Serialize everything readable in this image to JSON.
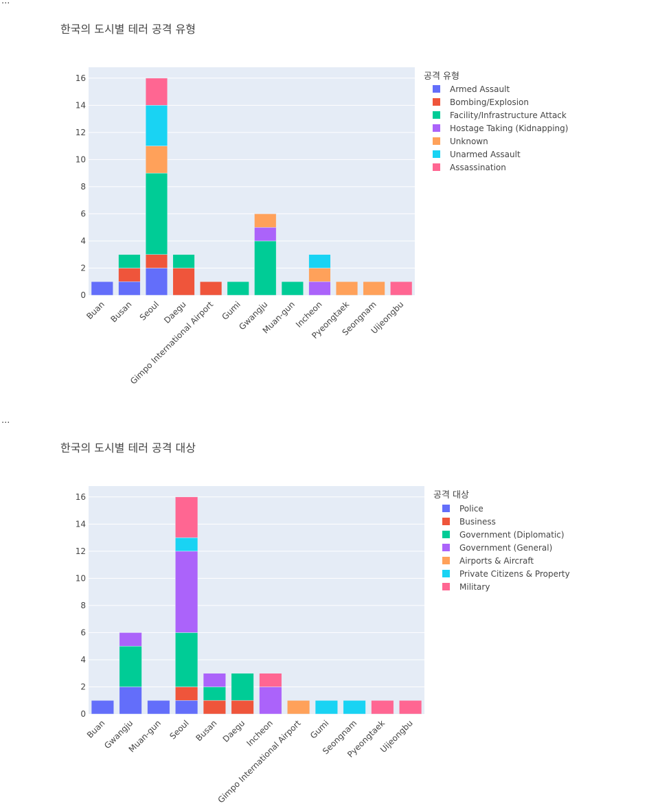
{
  "ellipsis": [
    "...",
    "..."
  ],
  "colors": {
    "plot_bg": "#e5ecf6",
    "grid": "#ffffff",
    "palette": [
      "#636efa",
      "#ef553b",
      "#00cc96",
      "#ab63fa",
      "#ffa15a",
      "#19d3f3",
      "#ff6692"
    ]
  },
  "chart_data": [
    {
      "type": "bar",
      "stacked": true,
      "title": "한국의 도시별 테러 공격 유형",
      "legend_title": "공격 유형",
      "xlabel": "",
      "ylabel": "",
      "ylim": [
        0,
        16.8
      ],
      "yticks": [
        0,
        2,
        4,
        6,
        8,
        10,
        12,
        14,
        16
      ],
      "categories": [
        "Buan",
        "Busan",
        "Seoul",
        "Daegu",
        "Gimpo International Airport",
        "Gumi",
        "Gwangju",
        "Muan-gun",
        "Incheon",
        "Pyeongtaek",
        "Seongnam",
        "Uijeongbu"
      ],
      "series": [
        {
          "name": "Armed Assault",
          "color": "#636efa",
          "values": [
            1,
            1,
            2,
            0,
            0,
            0,
            0,
            0,
            0,
            0,
            0,
            0
          ]
        },
        {
          "name": "Bombing/Explosion",
          "color": "#ef553b",
          "values": [
            0,
            1,
            1,
            2,
            1,
            0,
            0,
            0,
            0,
            0,
            0,
            0
          ]
        },
        {
          "name": "Facility/Infrastructure Attack",
          "color": "#00cc96",
          "values": [
            0,
            1,
            6,
            1,
            0,
            1,
            4,
            1,
            0,
            0,
            0,
            0
          ]
        },
        {
          "name": "Hostage Taking (Kidnapping)",
          "color": "#ab63fa",
          "values": [
            0,
            0,
            0,
            0,
            0,
            0,
            1,
            0,
            1,
            0,
            0,
            0
          ]
        },
        {
          "name": "Unknown",
          "color": "#ffa15a",
          "values": [
            0,
            0,
            2,
            0,
            0,
            0,
            1,
            0,
            1,
            1,
            1,
            0
          ]
        },
        {
          "name": "Unarmed Assault",
          "color": "#19d3f3",
          "values": [
            0,
            0,
            3,
            0,
            0,
            0,
            0,
            0,
            1,
            0,
            0,
            0
          ]
        },
        {
          "name": "Assassination",
          "color": "#ff6692",
          "values": [
            0,
            0,
            2,
            0,
            0,
            0,
            0,
            0,
            0,
            0,
            0,
            1
          ]
        }
      ]
    },
    {
      "type": "bar",
      "stacked": true,
      "title": "한국의 도시별 테러 공격 대상",
      "legend_title": "공격 대상",
      "xlabel": "",
      "ylabel": "",
      "ylim": [
        0,
        16.8
      ],
      "yticks": [
        0,
        2,
        4,
        6,
        8,
        10,
        12,
        14,
        16
      ],
      "categories": [
        "Buan",
        "Gwangju",
        "Muan-gun",
        "Seoul",
        "Busan",
        "Daegu",
        "Incheon",
        "Gimpo International Airport",
        "Gumi",
        "Seongnam",
        "Pyeongtaek",
        "Uijeongbu"
      ],
      "series": [
        {
          "name": "Police",
          "color": "#636efa",
          "values": [
            1,
            2,
            1,
            1,
            0,
            0,
            0,
            0,
            0,
            0,
            0,
            0
          ]
        },
        {
          "name": "Business",
          "color": "#ef553b",
          "values": [
            0,
            0,
            0,
            1,
            1,
            1,
            0,
            0,
            0,
            0,
            0,
            0
          ]
        },
        {
          "name": "Government (Diplomatic)",
          "color": "#00cc96",
          "values": [
            0,
            3,
            0,
            4,
            1,
            2,
            0,
            0,
            0,
            0,
            0,
            0
          ]
        },
        {
          "name": "Government (General)",
          "color": "#ab63fa",
          "values": [
            0,
            1,
            0,
            6,
            1,
            0,
            2,
            0,
            0,
            0,
            0,
            0
          ]
        },
        {
          "name": "Airports & Aircraft",
          "color": "#ffa15a",
          "values": [
            0,
            0,
            0,
            0,
            0,
            0,
            0,
            1,
            0,
            0,
            0,
            0
          ]
        },
        {
          "name": "Private Citizens & Property",
          "color": "#19d3f3",
          "values": [
            0,
            0,
            0,
            1,
            0,
            0,
            0,
            0,
            1,
            1,
            0,
            0
          ]
        },
        {
          "name": "Military",
          "color": "#ff6692",
          "values": [
            0,
            0,
            0,
            3,
            0,
            0,
            1,
            0,
            0,
            0,
            1,
            1
          ]
        }
      ]
    }
  ]
}
